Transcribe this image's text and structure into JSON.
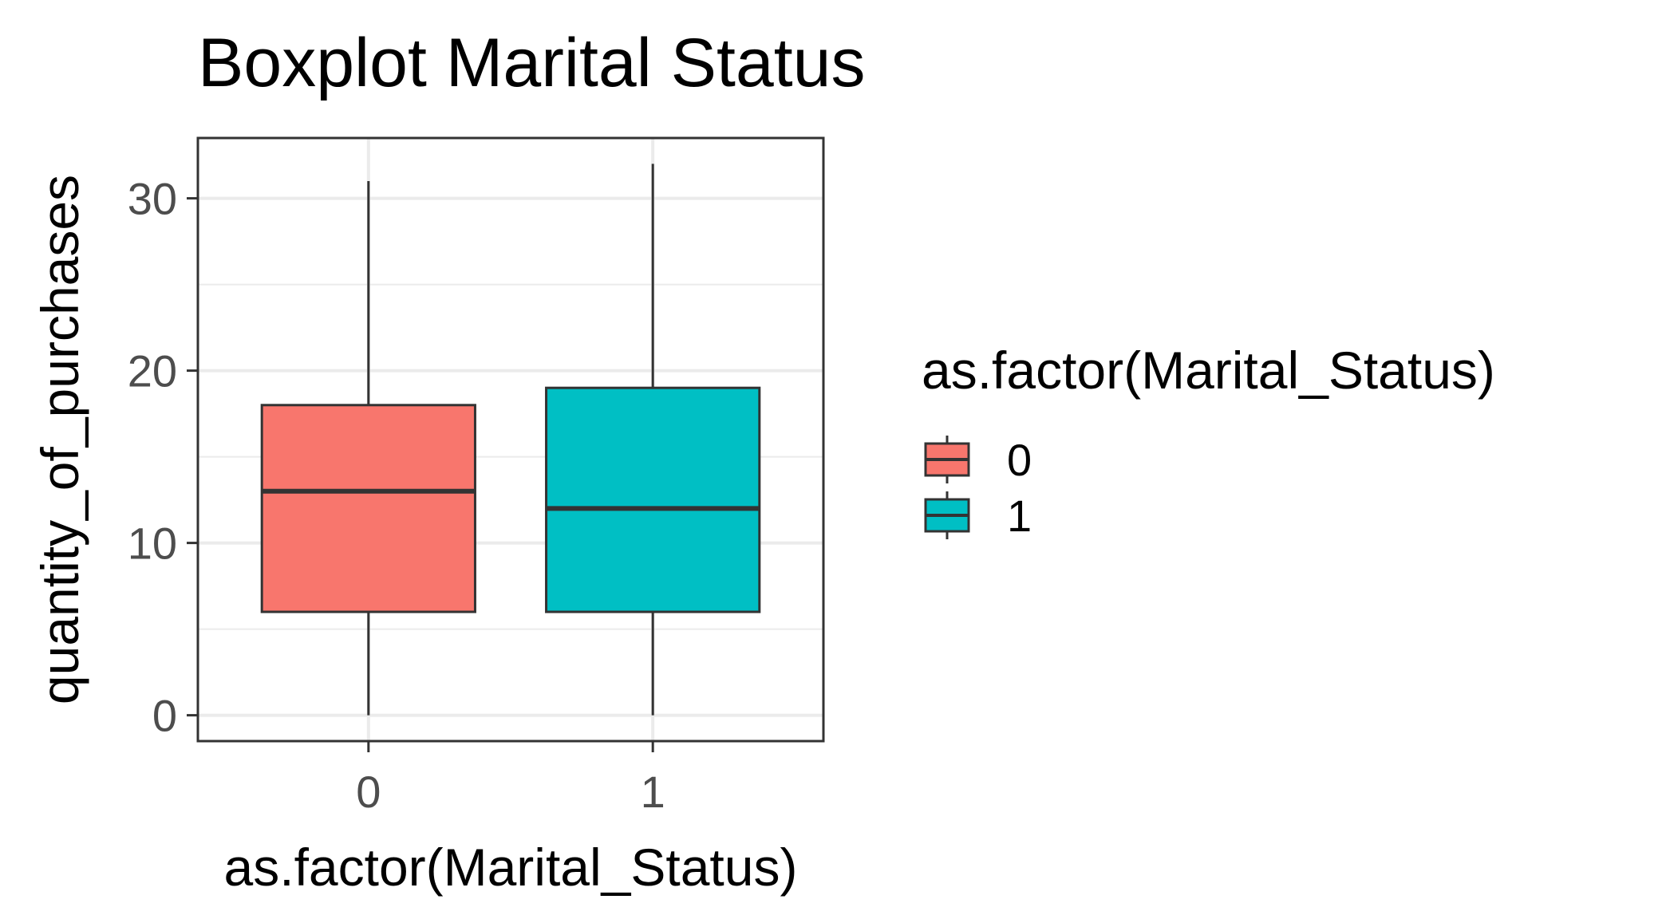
{
  "chart_data": {
    "type": "boxplot",
    "title": "Boxplot Marital Status",
    "xlabel": "as.factor(Marital_Status)",
    "ylabel": "quantity_of_purchases",
    "categories": [
      "0",
      "1"
    ],
    "boxes": [
      {
        "category": "0",
        "min": 0,
        "q1": 6,
        "median": 13,
        "q3": 18,
        "max": 31,
        "color": "#F8766D"
      },
      {
        "category": "1",
        "min": 0,
        "q1": 6,
        "median": 12,
        "q3": 19,
        "max": 32,
        "color": "#00BFC4"
      }
    ],
    "ylim": [
      -1.5,
      33.5
    ],
    "y_ticks": [
      "0",
      "10",
      "20",
      "30"
    ],
    "y_minor_ticks": [
      5,
      15,
      25
    ],
    "grid": true,
    "legend": {
      "title": "as.factor(Marital_Status)",
      "placement": "right",
      "items": [
        {
          "label": "0",
          "color": "#F8766D"
        },
        {
          "label": "1",
          "color": "#00BFC4"
        }
      ]
    }
  }
}
